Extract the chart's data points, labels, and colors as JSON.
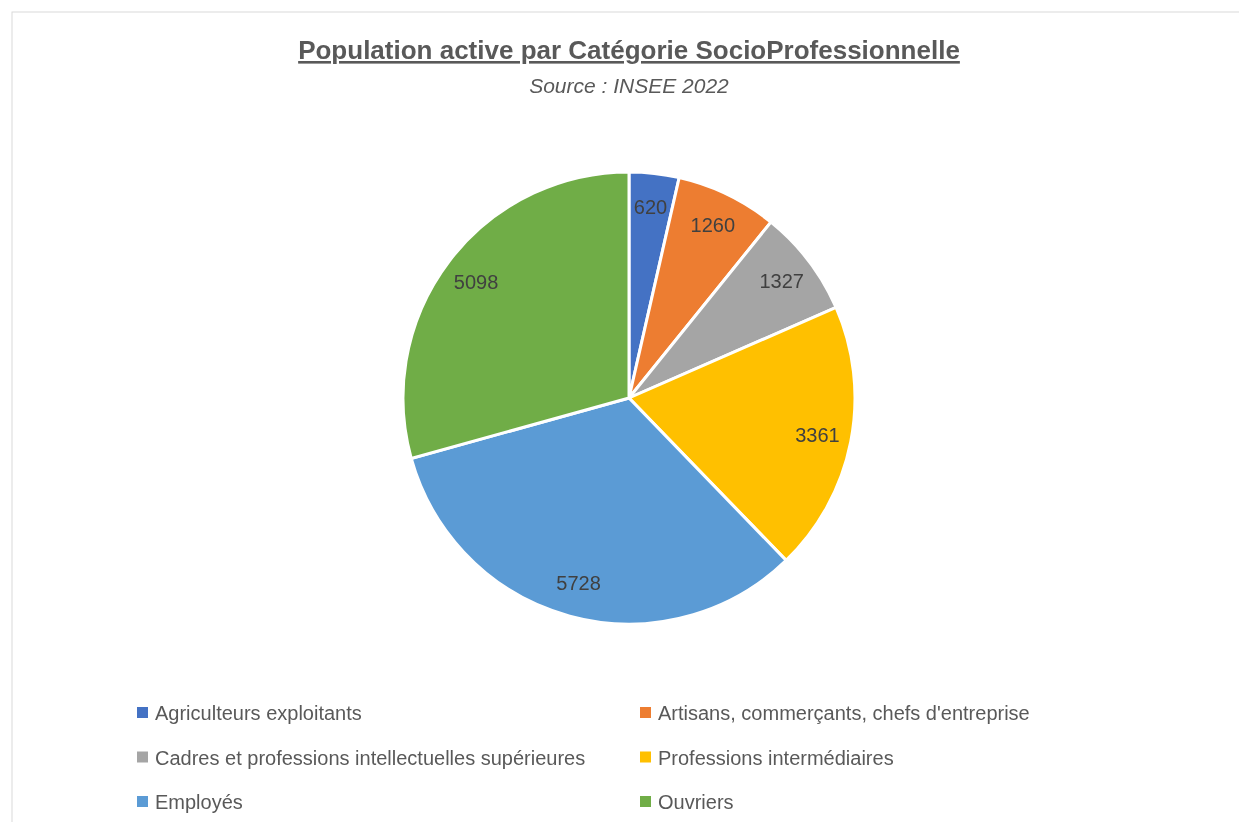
{
  "chart_data": {
    "type": "pie",
    "title": "Population active par Catégorie SocioProfessionnelle",
    "subtitle": "Source : INSEE 2022",
    "categories": [
      "Agriculteurs exploitants",
      "Artisans, commerçants, chefs d'entreprise",
      "Cadres et professions intellectuelles supérieures",
      "Professions intermédiaires",
      "Employés",
      "Ouvriers"
    ],
    "values": [
      620,
      1260,
      1327,
      3361,
      5728,
      5098
    ],
    "colors": [
      "#4472c4",
      "#ed7d31",
      "#a5a5a5",
      "#ffc000",
      "#5b9bd5",
      "#70ad47"
    ],
    "data_labels": true,
    "legend": "bottom"
  }
}
